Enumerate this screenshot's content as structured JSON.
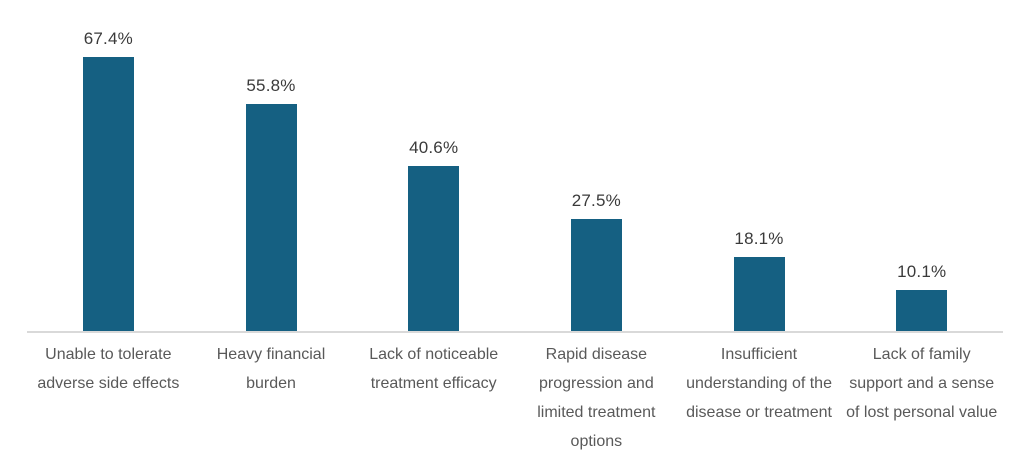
{
  "chart_data": {
    "type": "bar",
    "title": "",
    "xlabel": "",
    "ylabel": "",
    "categories": [
      "Unable to tolerate adverse side effects",
      "Heavy financial burden",
      "Lack of noticeable treatment efficacy",
      "Rapid disease progression and limited treatment options",
      "Insufficient understanding of the disease or treatment",
      "Lack of family support and a sense of lost personal value"
    ],
    "values": [
      67.4,
      55.8,
      40.6,
      27.5,
      18.1,
      10.1
    ],
    "value_labels": [
      "67.4%",
      "55.8%",
      "40.6%",
      "27.5%",
      "18.1%",
      "10.1%"
    ],
    "ylim": [
      0,
      80
    ],
    "grid": false,
    "legend": false,
    "bar_color": "#156082",
    "axis_line_color": "#D9D9D9",
    "value_label_color": "#3A3A3A",
    "category_label_color": "#595959"
  }
}
